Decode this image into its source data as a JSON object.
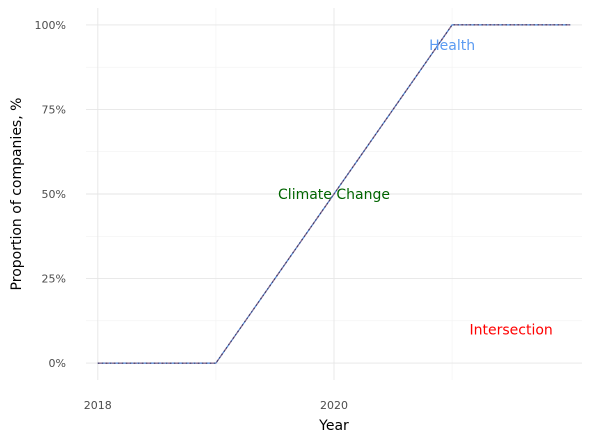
{
  "chart_data": {
    "type": "line",
    "xlabel": "Year",
    "ylabel": "Proportion of companies, %",
    "x": [
      2018,
      2019,
      2020,
      2021,
      2022
    ],
    "xlim": [
      2017.9,
      2022.1
    ],
    "ylim": [
      -0.05,
      1.05
    ],
    "x_ticks": [
      2018,
      2020
    ],
    "x_tick_labels": [
      "2018",
      "2020"
    ],
    "y_ticks": [
      0,
      0.25,
      0.5,
      0.75,
      1.0
    ],
    "y_tick_labels": [
      "0%",
      "25%",
      "50%",
      "75%",
      "100%"
    ],
    "grid": true,
    "series": [
      {
        "values": [
          0,
          0,
          0.5,
          1.0,
          1.0
        ],
        "color": "#4f86d9",
        "style": "solid"
      },
      {
        "values": [
          0,
          0,
          0.5,
          1.0,
          1.0
        ],
        "color": "#8e6a8a",
        "style": "dashed"
      },
      {
        "values": [
          0,
          0,
          0.5,
          1.0,
          1.0
        ],
        "color": "#3d3d6b",
        "style": "dotted"
      }
    ],
    "annotations": [
      {
        "text": "Health",
        "x": 2021.0,
        "y": 0.94,
        "color": "#5b9bf2"
      },
      {
        "text": "Climate Change",
        "x": 2020.0,
        "y": 0.5,
        "color": "#006400"
      },
      {
        "text": "Intersection",
        "x": 2021.5,
        "y": 0.1,
        "color": "#ff0000"
      }
    ]
  }
}
